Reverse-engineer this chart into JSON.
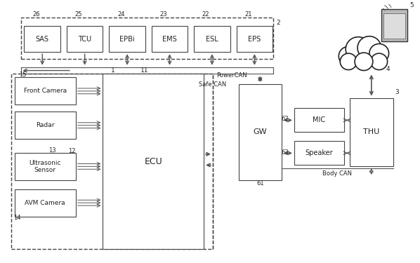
{
  "background_color": "#ffffff",
  "fig_width": 5.98,
  "fig_height": 3.75,
  "dpi": 100,
  "line_color": "#555555",
  "text_color": "#222222",
  "top_boxes": [
    {
      "label": "SAS",
      "num": "26"
    },
    {
      "label": "TCU",
      "num": "25"
    },
    {
      "label": "EPBi",
      "num": "24"
    },
    {
      "label": "EMS",
      "num": "23"
    },
    {
      "label": "ESL",
      "num": "22"
    },
    {
      "label": "EPS",
      "num": "21"
    }
  ],
  "sensor_labels": [
    "Front Camera",
    "Radar",
    "Ultrasonic\nSensor",
    "AVM Camera"
  ],
  "sensor_nums": [
    "15",
    "",
    "13",
    "14"
  ]
}
